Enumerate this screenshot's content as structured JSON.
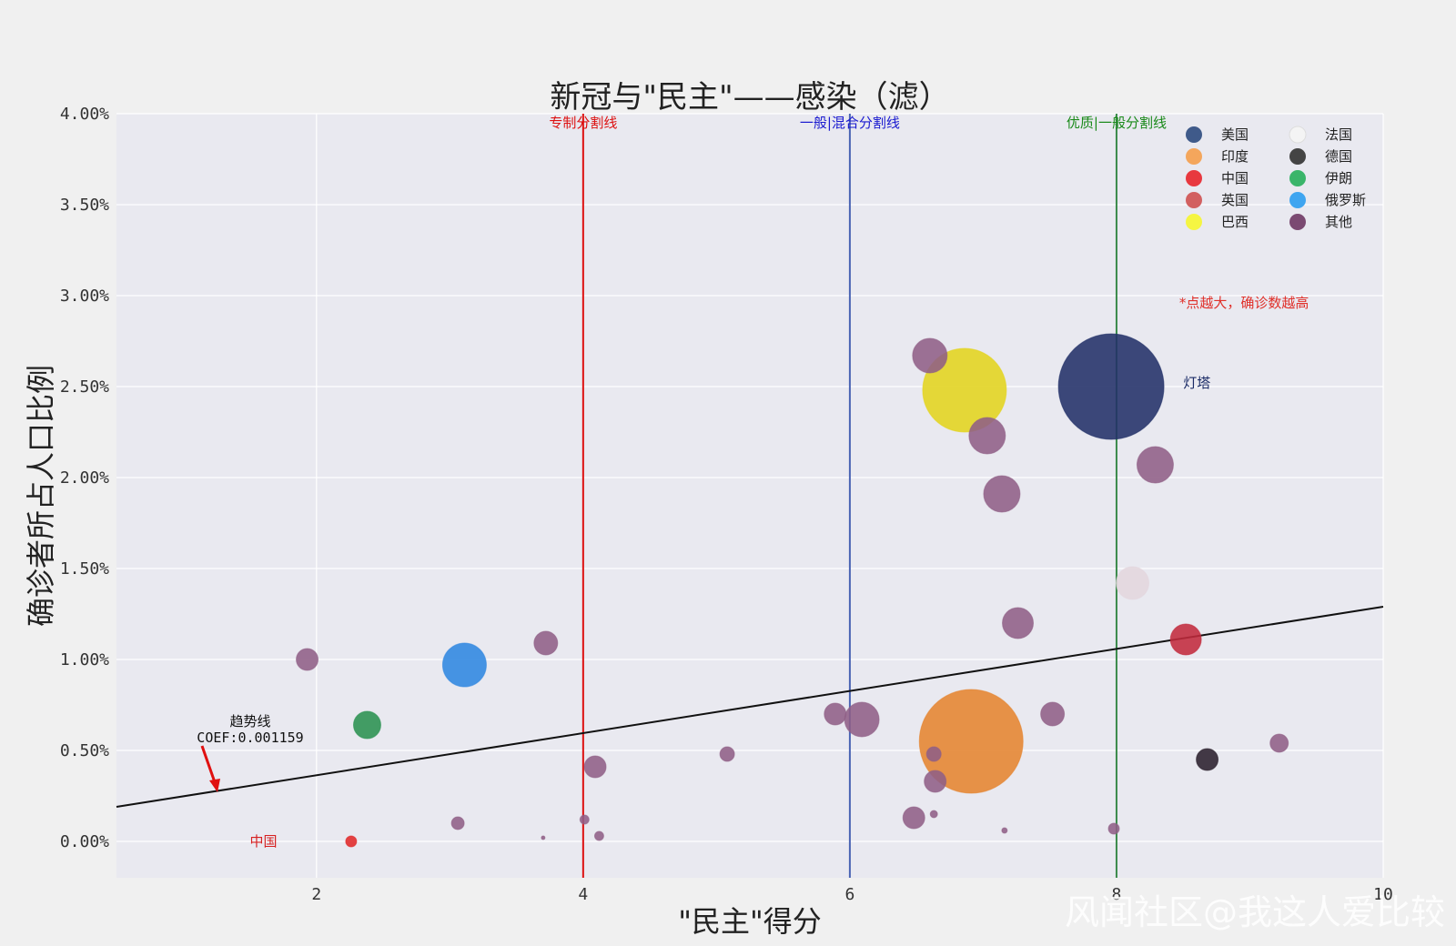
{
  "chart_data": {
    "type": "scatter",
    "title": "新冠与\"民主\"——感染（滤）",
    "xlabel": "\"民主\"得分",
    "ylabel": "确诊者所占人口比例",
    "xlim": [
      0.5,
      10
    ],
    "ylim": [
      -0.2,
      4.0
    ],
    "x_ticks": [
      2,
      4,
      6,
      8,
      10
    ],
    "y_ticks": [
      0.0,
      0.5,
      1.0,
      1.5,
      2.0,
      2.5,
      3.0,
      3.5,
      4.0
    ],
    "y_tick_labels": [
      "0.00%",
      "0.50%",
      "1.00%",
      "1.50%",
      "2.00%",
      "2.50%",
      "3.00%",
      "3.50%",
      "4.00%"
    ],
    "grid": true,
    "legend_position": "top-right",
    "legend": [
      {
        "name": "美国",
        "color": "#3f5a8a"
      },
      {
        "name": "印度",
        "color": "#f4a65c"
      },
      {
        "name": "中国",
        "color": "#e8383f"
      },
      {
        "name": "英国",
        "color": "#d26060"
      },
      {
        "name": "巴西",
        "color": "#f5f542"
      },
      {
        "name": "法国",
        "color": "#f4f4f4"
      },
      {
        "name": "德国",
        "color": "#444444"
      },
      {
        "name": "伊朗",
        "color": "#3ab56a"
      },
      {
        "name": "俄罗斯",
        "color": "#3fa5f0"
      },
      {
        "name": "其他",
        "color": "#7b4a72"
      }
    ],
    "vlines": [
      {
        "x": 4,
        "label": "专制分割线",
        "color": "#dd1111"
      },
      {
        "x": 6,
        "label": "一般|混合分割线",
        "color": "#4a64b4",
        "label_color": "#1a1ad0"
      },
      {
        "x": 8,
        "label": "优质|一般分割线",
        "color": "#3a8a4a",
        "label_color": "#1a8a1a"
      }
    ],
    "trendline": {
      "x": [
        0.5,
        10
      ],
      "y": [
        0.19,
        1.29
      ],
      "label": "趋势线",
      "coef_label": "COEF:0.001159"
    },
    "annotations": [
      {
        "text": "灯塔",
        "x": 8.5,
        "y": 2.52,
        "color": "#1b2b66"
      },
      {
        "text": "中国",
        "x": 1.5,
        "y": 0.0,
        "color": "#d62020"
      },
      {
        "text": "*点越大，确诊数越高",
        "x": 8.47,
        "y": 2.96,
        "color": "#e0302a"
      }
    ],
    "series": [
      {
        "name": "美国",
        "color": "#223068",
        "points": [
          {
            "x": 7.96,
            "y": 2.5,
            "r": 58
          }
        ]
      },
      {
        "name": "印度",
        "color": "#e5842f",
        "points": [
          {
            "x": 6.91,
            "y": 0.55,
            "r": 57
          }
        ]
      },
      {
        "name": "中国",
        "color": "#e02828",
        "points": [
          {
            "x": 2.26,
            "y": 0.0,
            "r": 6
          }
        ]
      },
      {
        "name": "英国",
        "color": "#c22a3c",
        "points": [
          {
            "x": 8.52,
            "y": 1.11,
            "r": 17
          }
        ]
      },
      {
        "name": "巴西",
        "color": "#e3d41c",
        "points": [
          {
            "x": 6.86,
            "y": 2.48,
            "r": 46
          }
        ]
      },
      {
        "name": "法国",
        "color": "#e3d6dd",
        "points": [
          {
            "x": 8.12,
            "y": 1.42,
            "r": 18
          }
        ]
      },
      {
        "name": "德国",
        "color": "#2a1f2c",
        "points": [
          {
            "x": 8.68,
            "y": 0.45,
            "r": 12
          }
        ]
      },
      {
        "name": "伊朗",
        "color": "#2a9150",
        "points": [
          {
            "x": 2.38,
            "y": 0.64,
            "r": 15
          }
        ]
      },
      {
        "name": "俄罗斯",
        "color": "#2e86e0",
        "points": [
          {
            "x": 3.11,
            "y": 0.97,
            "r": 24
          }
        ]
      },
      {
        "name": "其他",
        "color": "#8f5f86",
        "points": [
          {
            "x": 1.93,
            "y": 1.0,
            "r": 12
          },
          {
            "x": 3.72,
            "y": 1.09,
            "r": 13
          },
          {
            "x": 4.09,
            "y": 0.41,
            "r": 12
          },
          {
            "x": 3.06,
            "y": 0.1,
            "r": 7
          },
          {
            "x": 3.7,
            "y": 0.02,
            "r": 2
          },
          {
            "x": 4.01,
            "y": 0.12,
            "r": 5
          },
          {
            "x": 4.12,
            "y": 0.03,
            "r": 5
          },
          {
            "x": 5.08,
            "y": 0.48,
            "r": 8
          },
          {
            "x": 5.89,
            "y": 0.7,
            "r": 12
          },
          {
            "x": 6.09,
            "y": 0.67,
            "r": 19
          },
          {
            "x": 6.6,
            "y": 2.67,
            "r": 19
          },
          {
            "x": 7.03,
            "y": 2.23,
            "r": 20
          },
          {
            "x": 7.14,
            "y": 1.91,
            "r": 20
          },
          {
            "x": 7.26,
            "y": 1.2,
            "r": 17
          },
          {
            "x": 8.29,
            "y": 2.07,
            "r": 20
          },
          {
            "x": 7.52,
            "y": 0.7,
            "r": 13
          },
          {
            "x": 6.63,
            "y": 0.48,
            "r": 8
          },
          {
            "x": 6.64,
            "y": 0.33,
            "r": 12
          },
          {
            "x": 6.48,
            "y": 0.13,
            "r": 12
          },
          {
            "x": 6.63,
            "y": 0.15,
            "r": 4
          },
          {
            "x": 7.16,
            "y": 0.06,
            "r": 3
          },
          {
            "x": 7.98,
            "y": 0.07,
            "r": 6
          },
          {
            "x": 9.22,
            "y": 0.54,
            "r": 10
          }
        ]
      }
    ]
  },
  "watermark": "风闻社区@我这人爱比较"
}
